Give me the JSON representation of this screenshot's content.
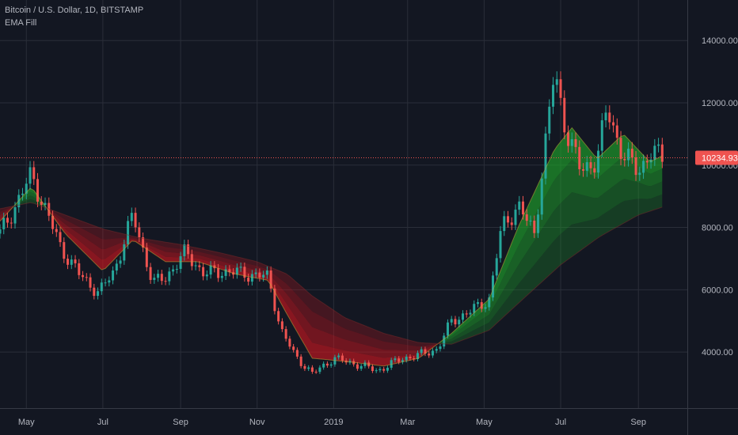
{
  "header": {
    "symbol_line": "Bitcoin / U.S. Dollar, 1D, BITSTAMP",
    "indicator_name": "EMA Fill"
  },
  "last_price_label": "10234.93",
  "colors": {
    "background": "#131722",
    "grid": "#2a2e39",
    "up_candle": "#26a69a",
    "down_candle": "#ef5350",
    "bull_fill": "#1faa2a",
    "bear_fill": "#d0161e",
    "last_price": "#ef5350",
    "axis_text": "#b2b5be"
  },
  "chart_data": {
    "type": "line",
    "subtype": "candlestick-with-ema-ribbon",
    "title": "Bitcoin / U.S. Dollar, 1D, BITSTAMP",
    "series": [
      {
        "name": "",
        "kind": "close",
        "x": [
          "2018-04-10",
          "2018-04-25",
          "2018-05-05",
          "2018-05-15",
          "2018-05-28",
          "2018-06-12",
          "2018-06-28",
          "2018-07-10",
          "2018-07-25",
          "2018-08-10",
          "2018-08-20",
          "2018-09-05",
          "2018-09-20",
          "2018-10-05",
          "2018-10-25",
          "2018-11-10",
          "2018-11-20",
          "2018-12-01",
          "2018-12-15",
          "2019-01-01",
          "2019-01-20",
          "2019-02-05",
          "2019-02-25",
          "2019-03-10",
          "2019-03-25",
          "2019-04-05",
          "2019-04-20",
          "2019-05-05",
          "2019-05-15",
          "2019-05-28",
          "2019-06-10",
          "2019-06-26",
          "2019-07-05",
          "2019-07-17",
          "2019-07-30",
          "2019-08-07",
          "2019-08-20",
          "2019-09-01",
          "2019-09-10",
          "2019-09-20"
        ],
        "y": [
          7800,
          8900,
          9700,
          8700,
          7400,
          6500,
          5900,
          6600,
          8400,
          6200,
          6400,
          7200,
          6500,
          6600,
          6500,
          6400,
          4700,
          3900,
          3300,
          3800,
          3600,
          3400,
          3800,
          3900,
          4100,
          5000,
          5300,
          5700,
          8000,
          8700,
          7800,
          13000,
          11200,
          9800,
          10200,
          11800,
          10300,
          9800,
          10400,
          10235
        ]
      },
      {
        "name": "",
        "kind": "ema-fast",
        "x": [
          "2018-04-10",
          "2018-05-05",
          "2018-06-01",
          "2018-07-01",
          "2018-07-25",
          "2018-08-20",
          "2018-09-15",
          "2018-10-15",
          "2018-11-10",
          "2018-11-25",
          "2018-12-15",
          "2019-01-10",
          "2019-02-10",
          "2019-03-10",
          "2019-04-05",
          "2019-05-05",
          "2019-05-28",
          "2019-06-26",
          "2019-07-10",
          "2019-07-30",
          "2019-08-20",
          "2019-09-10",
          "2019-09-20"
        ],
        "y": [
          8200,
          9300,
          7800,
          6600,
          7600,
          6900,
          6900,
          6500,
          6300,
          5200,
          3800,
          3700,
          3550,
          3800,
          4600,
          5700,
          8000,
          10500,
          11200,
          10200,
          11000,
          10100,
          10300
        ]
      },
      {
        "name": "",
        "kind": "ema-slow",
        "x": [
          "2018-04-10",
          "2018-05-05",
          "2018-06-01",
          "2018-07-01",
          "2018-08-01",
          "2018-09-01",
          "2018-10-01",
          "2018-11-01",
          "2018-11-25",
          "2018-12-15",
          "2019-01-10",
          "2019-02-10",
          "2019-03-10",
          "2019-04-05",
          "2019-05-05",
          "2019-06-01",
          "2019-07-01",
          "2019-08-01",
          "2019-09-01",
          "2019-09-20"
        ],
        "y": [
          8600,
          8800,
          8400,
          7950,
          7650,
          7450,
          7200,
          6900,
          6500,
          5800,
          5100,
          4600,
          4300,
          4250,
          4700,
          5700,
          6800,
          7700,
          8400,
          8650
        ]
      }
    ],
    "xlabel": "",
    "ylabel": "",
    "x_ticks": [
      "May",
      "Jul",
      "Sep",
      "Nov",
      "2019",
      "Mar",
      "May",
      "Jul",
      "Sep"
    ],
    "x_tick_dates": [
      "2018-05-01",
      "2018-07-01",
      "2018-09-01",
      "2018-11-01",
      "2019-01-01",
      "2019-03-01",
      "2019-05-01",
      "2019-07-01",
      "2019-09-01"
    ],
    "y_ticks": [
      "14000.00",
      "12000.00",
      "10000.00",
      "8000.00",
      "6000.00",
      "4000.00"
    ],
    "y_tick_values": [
      14000,
      12000,
      10000,
      8000,
      6000,
      4000
    ],
    "xlim": [
      "2018-04-10",
      "2019-10-10"
    ],
    "ylim": [
      2200,
      15300
    ],
    "last_price": 10234.93,
    "grid": true,
    "legend": "top-left"
  }
}
